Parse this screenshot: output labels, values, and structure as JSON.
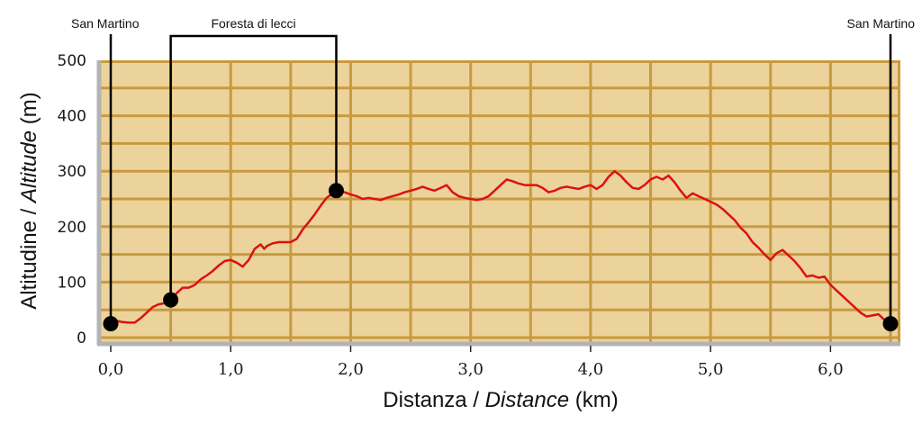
{
  "chart_data": {
    "type": "line",
    "xlabel": {
      "main": "Distanza / ",
      "italic": "Distance",
      "unit": " (km)"
    },
    "ylabel": {
      "main": "Altitudine / ",
      "italic": "Altitude",
      "unit": " (m)"
    },
    "xlim": [
      0,
      6.6
    ],
    "ylim": [
      0,
      500
    ],
    "x_ticks": [
      0,
      1,
      2,
      3,
      4,
      5,
      6
    ],
    "x_tick_labels": [
      "0,0",
      "1,0",
      "2,0",
      "3,0",
      "4,0",
      "5,0",
      "6,0"
    ],
    "y_ticks": [
      0,
      100,
      200,
      300,
      400,
      500
    ],
    "y_tick_labels": [
      "0",
      "100",
      "200",
      "300",
      "400",
      "500"
    ],
    "grid": true,
    "colors": {
      "plot_bg": "#ebd39b",
      "grid": "#c99a3e",
      "line": "#dd1111",
      "frame": "#b3b3b3",
      "marker": "#000000"
    },
    "series": [
      {
        "x": [
          0.0,
          0.05,
          0.1,
          0.15,
          0.2,
          0.25,
          0.3,
          0.35,
          0.4,
          0.45,
          0.5,
          0.55,
          0.6,
          0.65,
          0.7,
          0.75,
          0.8,
          0.85,
          0.9,
          0.95,
          1.0,
          1.05,
          1.1,
          1.15,
          1.2,
          1.25,
          1.28,
          1.3,
          1.35,
          1.4,
          1.45,
          1.5,
          1.55,
          1.6,
          1.65,
          1.7,
          1.75,
          1.8,
          1.85,
          1.88,
          1.95,
          2.0,
          2.05,
          2.1,
          2.15,
          2.2,
          2.25,
          2.3,
          2.35,
          2.4,
          2.45,
          2.5,
          2.55,
          2.6,
          2.65,
          2.7,
          2.75,
          2.8,
          2.85,
          2.9,
          2.95,
          3.0,
          3.05,
          3.1,
          3.15,
          3.2,
          3.25,
          3.3,
          3.35,
          3.4,
          3.45,
          3.5,
          3.55,
          3.6,
          3.65,
          3.7,
          3.75,
          3.8,
          3.85,
          3.9,
          3.95,
          4.0,
          4.05,
          4.1,
          4.15,
          4.2,
          4.25,
          4.3,
          4.35,
          4.4,
          4.45,
          4.5,
          4.55,
          4.6,
          4.65,
          4.7,
          4.75,
          4.8,
          4.85,
          4.9,
          4.95,
          5.0,
          5.05,
          5.1,
          5.15,
          5.2,
          5.25,
          5.3,
          5.35,
          5.4,
          5.45,
          5.5,
          5.55,
          5.6,
          5.65,
          5.7,
          5.75,
          5.8,
          5.85,
          5.9,
          5.95,
          6.0,
          6.05,
          6.1,
          6.15,
          6.2,
          6.25,
          6.3,
          6.35,
          6.4,
          6.45,
          6.5
        ],
        "y": [
          25,
          30,
          28,
          27,
          27,
          35,
          45,
          55,
          60,
          62,
          68,
          80,
          90,
          90,
          95,
          105,
          112,
          120,
          130,
          138,
          140,
          135,
          128,
          140,
          160,
          168,
          160,
          165,
          170,
          172,
          172,
          172,
          178,
          195,
          208,
          222,
          238,
          252,
          260,
          265,
          262,
          258,
          255,
          250,
          252,
          250,
          248,
          252,
          255,
          258,
          262,
          265,
          268,
          272,
          268,
          265,
          270,
          275,
          262,
          255,
          252,
          250,
          248,
          250,
          255,
          265,
          275,
          285,
          282,
          278,
          275,
          275,
          275,
          270,
          262,
          265,
          270,
          272,
          270,
          268,
          272,
          275,
          268,
          275,
          290,
          300,
          292,
          280,
          270,
          268,
          275,
          285,
          290,
          285,
          292,
          280,
          265,
          252,
          260,
          255,
          250,
          245,
          240,
          232,
          222,
          212,
          198,
          188,
          172,
          162,
          150,
          140,
          152,
          158,
          148,
          138,
          125,
          110,
          112,
          108,
          110,
          95,
          85,
          75,
          65,
          55,
          45,
          38,
          40,
          42,
          32,
          25
        ]
      }
    ],
    "markers": [
      {
        "x": 0.0,
        "y": 25,
        "label": "San Martino",
        "label_align": "end",
        "bracket": "start"
      },
      {
        "x": 0.5,
        "y": 68,
        "bracket": "start"
      },
      {
        "x": 1.88,
        "y": 265,
        "bracket": "end"
      },
      {
        "x": 6.5,
        "y": 25,
        "label": "San Martino",
        "label_align": "start",
        "bracket": "none"
      }
    ],
    "bracket_label": "Foresta di lecci"
  }
}
